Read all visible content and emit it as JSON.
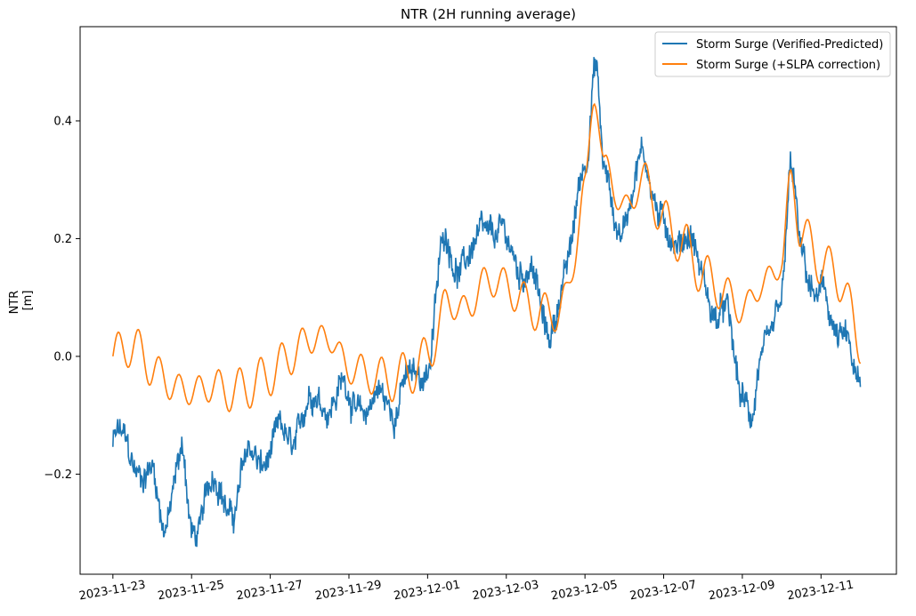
{
  "chart_data": {
    "type": "line",
    "title": "NTR (2H running average)",
    "ylabel_lines": [
      "NTR",
      "[m]"
    ],
    "xlabel": "",
    "xlim": [
      "2023-11-22 04:00",
      "2023-12-12 22:00"
    ],
    "ylim": [
      -0.37,
      0.56
    ],
    "x_ticks": [
      "2023-11-23",
      "2023-11-25",
      "2023-11-27",
      "2023-11-29",
      "2023-12-01",
      "2023-12-03",
      "2023-12-05",
      "2023-12-07",
      "2023-12-09",
      "2023-12-11"
    ],
    "y_ticks": [
      -0.2,
      0.0,
      0.2,
      0.4
    ],
    "y_tick_labels": [
      "−0.2",
      "0.0",
      "0.2",
      "0.4"
    ],
    "grid": false,
    "legend_position": "top-right",
    "series": [
      {
        "name": "Storm Surge (Verified-Predicted)",
        "color": "#1f77b4",
        "points": [
          [
            "2023-11-23 00:00",
            -0.15
          ],
          [
            "2023-11-23 12:00",
            -0.17
          ],
          [
            "2023-11-24 00:00",
            -0.21
          ],
          [
            "2023-11-24 06:00",
            -0.27
          ],
          [
            "2023-11-24 18:00",
            -0.18
          ],
          [
            "2023-11-25 00:00",
            -0.3
          ],
          [
            "2023-11-25 12:00",
            -0.22
          ],
          [
            "2023-11-26 00:00",
            -0.25
          ],
          [
            "2023-11-26 12:00",
            -0.18
          ],
          [
            "2023-11-27 00:00",
            -0.16
          ],
          [
            "2023-11-27 12:00",
            -0.15
          ],
          [
            "2023-11-28 00:00",
            -0.08
          ],
          [
            "2023-11-28 12:00",
            -0.06
          ],
          [
            "2023-11-29 00:00",
            -0.07
          ],
          [
            "2023-11-29 12:00",
            -0.09
          ],
          [
            "2023-11-30 00:00",
            -0.07
          ],
          [
            "2023-11-30 12:00",
            -0.06
          ],
          [
            "2023-12-01 00:00",
            0.0
          ],
          [
            "2023-12-01 12:00",
            0.2
          ],
          [
            "2023-12-02 00:00",
            0.15
          ],
          [
            "2023-12-02 12:00",
            0.22
          ],
          [
            "2023-12-03 00:00",
            0.18
          ],
          [
            "2023-12-03 12:00",
            0.16
          ],
          [
            "2023-12-04 00:00",
            0.05
          ],
          [
            "2023-12-04 12:00",
            0.12
          ],
          [
            "2023-12-05 00:00",
            0.35
          ],
          [
            "2023-12-05 06:00",
            0.48
          ],
          [
            "2023-12-05 12:00",
            0.3
          ],
          [
            "2023-12-06 00:00",
            0.22
          ],
          [
            "2023-12-06 12:00",
            0.36
          ],
          [
            "2023-12-07 00:00",
            0.2
          ],
          [
            "2023-12-07 12:00",
            0.22
          ],
          [
            "2023-12-08 00:00",
            0.13
          ],
          [
            "2023-12-08 12:00",
            0.06
          ],
          [
            "2023-12-09 00:00",
            -0.05
          ],
          [
            "2023-12-09 06:00",
            -0.1
          ],
          [
            "2023-12-09 12:00",
            -0.02
          ],
          [
            "2023-12-10 00:00",
            0.1
          ],
          [
            "2023-12-10 06:00",
            0.29
          ],
          [
            "2023-12-10 12:00",
            0.18
          ],
          [
            "2023-12-11 00:00",
            0.08
          ],
          [
            "2023-12-11 12:00",
            0.05
          ],
          [
            "2023-12-12 00:00",
            -0.08
          ]
        ]
      },
      {
        "name": "Storm Surge (+SLPA correction)",
        "color": "#ff7f0e",
        "points": [
          [
            "2023-11-23 00:00",
            0.0
          ],
          [
            "2023-11-23 12:00",
            0.02
          ],
          [
            "2023-11-24 00:00",
            -0.02
          ],
          [
            "2023-11-24 12:00",
            -0.05
          ],
          [
            "2023-11-25 00:00",
            -0.06
          ],
          [
            "2023-11-25 12:00",
            -0.05
          ],
          [
            "2023-11-26 00:00",
            -0.06
          ],
          [
            "2023-11-26 12:00",
            -0.05
          ],
          [
            "2023-11-27 00:00",
            -0.03
          ],
          [
            "2023-11-27 12:00",
            0.0
          ],
          [
            "2023-11-28 00:00",
            0.03
          ],
          [
            "2023-11-28 12:00",
            0.03
          ],
          [
            "2023-11-29 00:00",
            -0.02
          ],
          [
            "2023-11-29 12:00",
            -0.03
          ],
          [
            "2023-11-30 00:00",
            -0.04
          ],
          [
            "2023-11-30 12:00",
            -0.03
          ],
          [
            "2023-12-01 00:00",
            0.0
          ],
          [
            "2023-12-01 12:00",
            0.09
          ],
          [
            "2023-12-02 00:00",
            0.08
          ],
          [
            "2023-12-02 12:00",
            0.13
          ],
          [
            "2023-12-03 00:00",
            0.12
          ],
          [
            "2023-12-03 12:00",
            0.09
          ],
          [
            "2023-12-04 00:00",
            0.07
          ],
          [
            "2023-12-04 12:00",
            0.09
          ],
          [
            "2023-12-05 00:00",
            0.28
          ],
          [
            "2023-12-05 06:00",
            0.45
          ],
          [
            "2023-12-05 12:00",
            0.32
          ],
          [
            "2023-12-06 00:00",
            0.25
          ],
          [
            "2023-12-06 12:00",
            0.3
          ],
          [
            "2023-12-07 00:00",
            0.23
          ],
          [
            "2023-12-07 12:00",
            0.19
          ],
          [
            "2023-12-08 00:00",
            0.14
          ],
          [
            "2023-12-08 12:00",
            0.11
          ],
          [
            "2023-12-09 00:00",
            0.08
          ],
          [
            "2023-12-09 12:00",
            0.12
          ],
          [
            "2023-12-10 00:00",
            0.16
          ],
          [
            "2023-12-10 06:00",
            0.3
          ],
          [
            "2023-12-10 12:00",
            0.21
          ],
          [
            "2023-12-11 00:00",
            0.16
          ],
          [
            "2023-12-11 12:00",
            0.13
          ],
          [
            "2023-12-12 00:00",
            0.02
          ]
        ]
      }
    ]
  }
}
